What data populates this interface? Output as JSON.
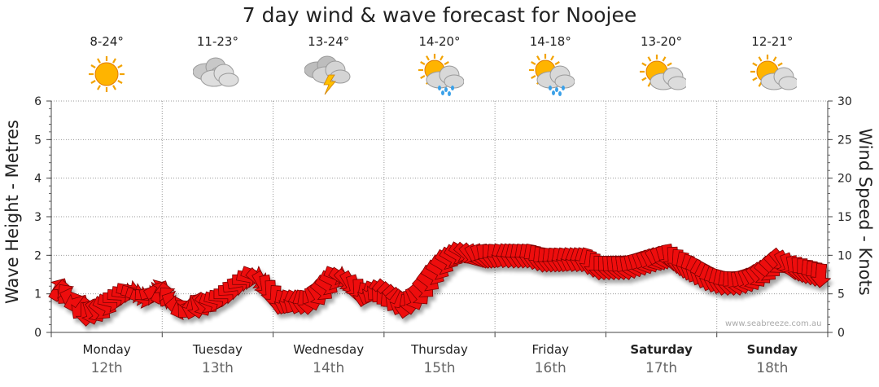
{
  "title": "7 day wind & wave forecast for Noojee",
  "watermark": "www.seabreeze.com.au",
  "forecast": [
    {
      "day": "Monday",
      "date": "12th",
      "temp": "8-24°",
      "icon": "sun-icon",
      "bold": false
    },
    {
      "day": "Tuesday",
      "date": "13th",
      "temp": "11-23°",
      "icon": "cloud-icon",
      "bold": false
    },
    {
      "day": "Wednesday",
      "date": "14th",
      "temp": "13-24°",
      "icon": "storm-icon",
      "bold": false
    },
    {
      "day": "Thursday",
      "date": "15th",
      "temp": "14-20°",
      "icon": "sun-shower-icon",
      "bold": false
    },
    {
      "day": "Friday",
      "date": "16th",
      "temp": "14-18°",
      "icon": "sun-shower-icon",
      "bold": false
    },
    {
      "day": "Saturday",
      "date": "17th",
      "temp": "13-20°",
      "icon": "partly-cloudy-icon",
      "bold": true
    },
    {
      "day": "Sunday",
      "date": "18th",
      "temp": "12-21°",
      "icon": "partly-cloudy-icon",
      "bold": true
    }
  ],
  "chart_data": {
    "type": "line",
    "title": "7 day wind & wave forecast for Noojee",
    "ylabel": "Wave Height - Metres",
    "y2label": "Wind Speed - Knots",
    "ylim": [
      0,
      6
    ],
    "y2lim": [
      0,
      30
    ],
    "yticks": [
      0,
      1,
      2,
      3,
      4,
      5,
      6
    ],
    "y2ticks": [
      0,
      5,
      10,
      15,
      20,
      25,
      30
    ],
    "grid": true,
    "colors": {
      "arrow": "#ee1111",
      "arrow_stroke": "#7a0000",
      "grid": "#999999"
    },
    "series": [
      {
        "name": "Wind Speed - Knots",
        "axis": "right",
        "points_per_day": 8,
        "values": [
          5.5,
          4.5,
          2.5,
          3,
          4.5,
          5.5,
          4.5,
          5.5,
          4.5,
          3,
          3.5,
          4,
          5,
          6.5,
          7.5,
          6,
          4,
          4,
          4,
          5.5,
          7.5,
          6.5,
          5,
          5.5,
          4.5,
          3.5,
          5,
          7.5,
          9.5,
          10.5,
          10,
          10,
          10,
          10,
          10,
          9.5,
          9.5,
          9.5,
          9.5,
          8.5,
          8.5,
          8.5,
          9,
          9.5,
          10,
          9,
          8,
          7,
          6.5,
          6.5,
          7,
          8,
          9.5,
          8.5,
          8,
          7.5
        ],
        "directions": [
          300,
          200,
          90,
          40,
          0,
          10,
          20,
          330,
          230,
          160,
          80,
          20,
          0,
          350,
          20,
          80,
          100,
          120,
          90,
          40,
          20,
          60,
          100,
          130,
          140,
          100,
          50,
          30,
          30,
          30,
          60,
          90,
          110,
          100,
          100,
          95,
          100,
          110,
          105,
          90,
          85,
          80,
          70,
          60,
          80,
          100,
          120,
          110,
          100,
          80,
          60,
          40,
          50,
          80,
          95,
          95
        ]
      }
    ]
  }
}
